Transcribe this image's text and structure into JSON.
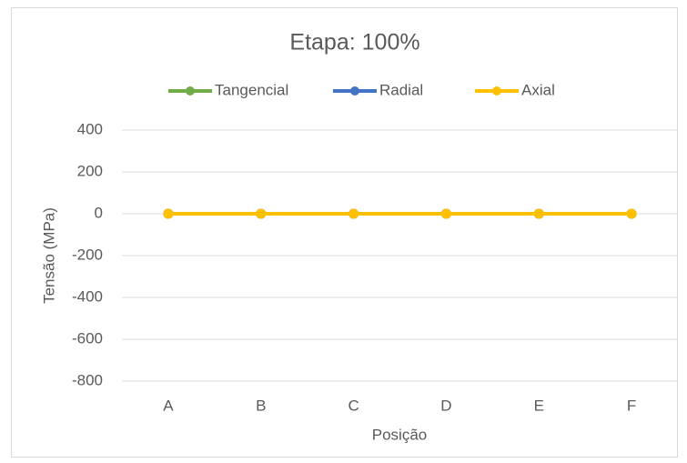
{
  "chart_data": {
    "type": "line",
    "title": "Etapa: 100%",
    "x_label": "Posição",
    "y_label": "Tensão (MPa)",
    "categories": [
      "A",
      "B",
      "C",
      "D",
      "E",
      "F"
    ],
    "series": [
      {
        "name": "Tangencial",
        "color": "#70ad47",
        "values": [
          0,
          0,
          0,
          0,
          0,
          0
        ]
      },
      {
        "name": "Radial",
        "color": "#4472c4",
        "values": [
          0,
          0,
          0,
          0,
          0,
          0
        ]
      },
      {
        "name": "Axial",
        "color": "#ffc000",
        "values": [
          0,
          0,
          0,
          0,
          0,
          0
        ]
      }
    ],
    "ylim": [
      -800,
      400
    ],
    "yticks": [
      -800,
      -600,
      -400,
      -200,
      0,
      200,
      400
    ],
    "grid": true,
    "legend": "top"
  }
}
